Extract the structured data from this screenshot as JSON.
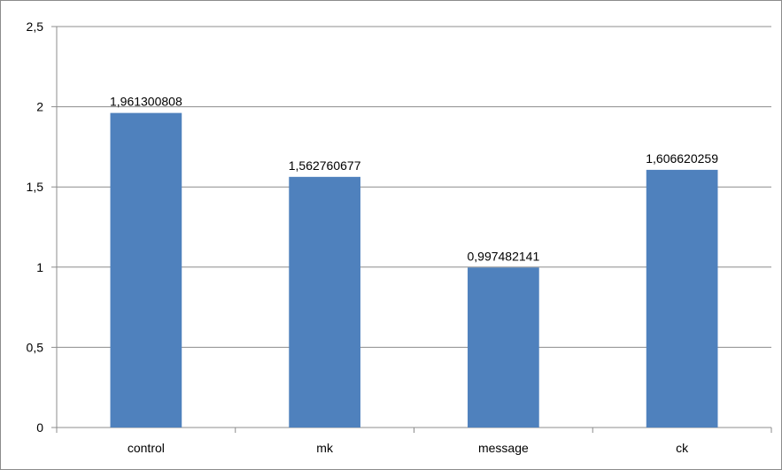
{
  "chart_data": {
    "type": "bar",
    "categories": [
      "control",
      "mk",
      "message",
      "ck"
    ],
    "values": [
      1.961300808,
      1.562760677,
      0.997482141,
      1.606620259
    ],
    "data_labels": [
      "1,961300808",
      "1,562760677",
      "0,997482141",
      "1,606620259"
    ],
    "y_ticks": [
      0,
      0.5,
      1,
      1.5,
      2,
      2.5
    ],
    "y_tick_labels": [
      "0",
      "0,5",
      "1",
      "1,5",
      "2",
      "2,5"
    ],
    "ylim": [
      0,
      2.5
    ],
    "title": "",
    "xlabel": "",
    "ylabel": "",
    "grid": true,
    "legend": "none"
  },
  "colors": {
    "bar": "#4f81bd",
    "gridline": "#8c8c8c",
    "axis": "#8c8c8c",
    "text": "#000000",
    "background": "#ffffff"
  }
}
